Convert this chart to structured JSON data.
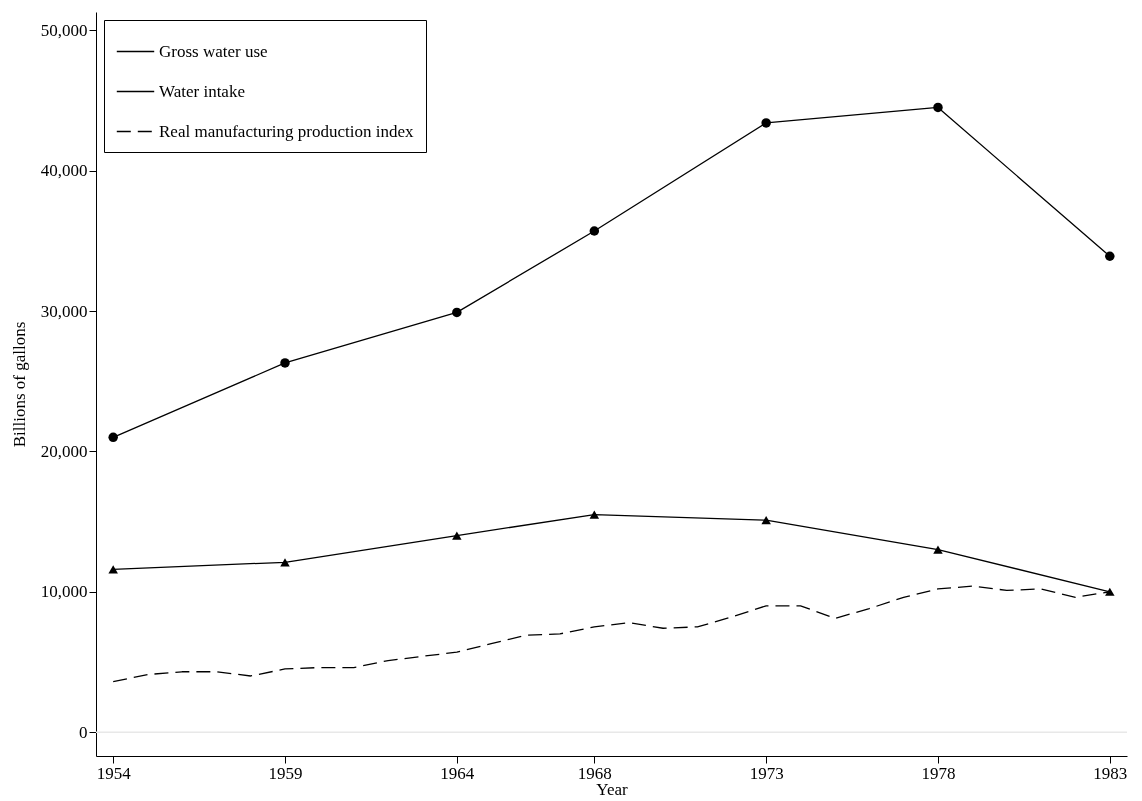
{
  "chart_data": {
    "type": "line",
    "xlabel": "Year",
    "ylabel": "Billions of gallons",
    "xlim": [
      1953.5,
      1983.5
    ],
    "xticks": [
      1954,
      1959,
      1964,
      1968,
      1973,
      1978,
      1983
    ],
    "ylim": [
      -1700,
      51300
    ],
    "yticks": [
      0,
      {
        "value": 10000,
        "label": "10,000"
      },
      {
        "value": 20000,
        "label": "20,000"
      },
      {
        "value": 30000,
        "label": "30,000"
      },
      {
        "value": 40000,
        "label": "40,000"
      },
      {
        "value": 50000,
        "label": "50,000"
      }
    ],
    "grid": false,
    "legend": "top left",
    "ref_lines": [
      {
        "axis": "y",
        "value": 0,
        "color": "#e8e8e8"
      }
    ],
    "series": [
      {
        "name": "Gross water use",
        "color": "#000000",
        "marker": "circle",
        "line_style": "solid",
        "x": [
          1954,
          1959,
          1964,
          1968,
          1973,
          1978,
          1983
        ],
        "values": [
          21000,
          26300,
          29900,
          35700,
          43400,
          44500,
          33900
        ]
      },
      {
        "name": "Water intake",
        "color": "#000000",
        "marker": "triangle",
        "line_style": "solid",
        "x": [
          1954,
          1959,
          1964,
          1968,
          1973,
          1978,
          1983
        ],
        "values": [
          11600,
          12100,
          14000,
          15500,
          15100,
          13000,
          10000
        ]
      },
      {
        "name": "Real manufacturing production index",
        "color": "#000000",
        "marker": "none",
        "line_style": "dashed",
        "x": [
          1954,
          1955,
          1956,
          1957,
          1958,
          1959,
          1960,
          1961,
          1962,
          1963,
          1964,
          1965,
          1966,
          1967,
          1968,
          1969,
          1970,
          1971,
          1972,
          1973,
          1974,
          1975,
          1976,
          1977,
          1978,
          1979,
          1980,
          1981,
          1982,
          1983
        ],
        "values": [
          3600,
          4100,
          4300,
          4300,
          4000,
          4500,
          4600,
          4600,
          5100,
          5400,
          5700,
          6300,
          6900,
          7000,
          7500,
          7800,
          7400,
          7500,
          8200,
          9000,
          9000,
          8100,
          8800,
          9600,
          10200,
          10400,
          10100,
          10200,
          9600,
          10000
        ]
      }
    ]
  }
}
